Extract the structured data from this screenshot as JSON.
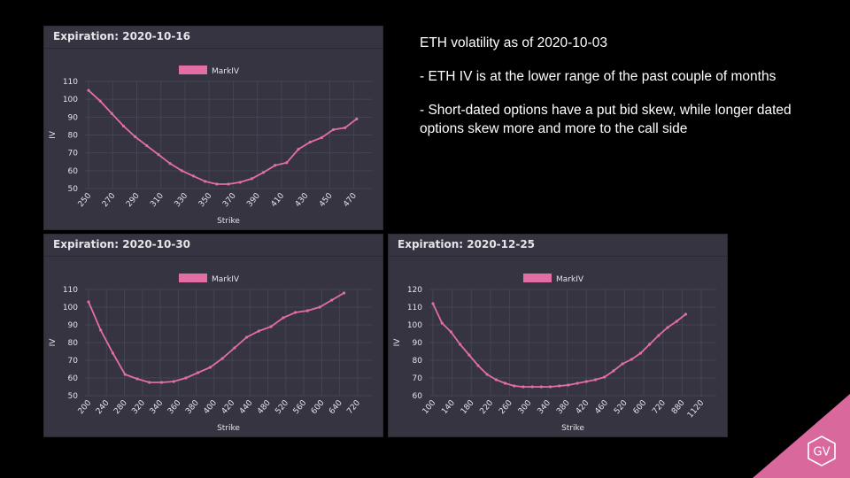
{
  "notes": {
    "heading": "ETH volatility as of 2020-10-03",
    "bullet1": "- ETH IV is at the lower range of the past couple of months",
    "bullet2": "- Short-dated options have a put bid skew, while longer dated options skew more and more to the call side"
  },
  "logo": {
    "text": "GV",
    "color": "#d9689d"
  },
  "colors": {
    "series": "#e26ea5",
    "panel_bg": "#353440",
    "grid": "#454452",
    "text": "#e4e4e8"
  },
  "chart_data": [
    {
      "type": "line",
      "title": "Expiration: 2020-10-16",
      "xlabel": "Strike",
      "ylabel": "IV",
      "legend": "top-center",
      "grid": true,
      "series": [
        {
          "name": "MarkIV",
          "color": "#e26ea5"
        }
      ],
      "x": [
        250,
        260,
        270,
        280,
        290,
        300,
        310,
        320,
        330,
        340,
        350,
        360,
        370,
        380,
        390,
        400,
        410,
        420,
        430,
        440,
        450,
        460,
        470,
        480,
        490
      ],
      "y": [
        105,
        99,
        92,
        85,
        79,
        74,
        69,
        64,
        60,
        57,
        54,
        52.5,
        52.5,
        53.5,
        55.5,
        59,
        63,
        64.5,
        72,
        76,
        78.5,
        83,
        84,
        89,
        null
      ],
      "xticks": [
        "250",
        "270",
        "290",
        "310",
        "330",
        "350",
        "370",
        "390",
        "410",
        "430",
        "450",
        "470"
      ],
      "yticks": [
        50,
        60,
        70,
        80,
        90,
        100,
        110
      ],
      "ylim": [
        50,
        110
      ]
    },
    {
      "type": "line",
      "title": "Expiration: 2020-10-30",
      "xlabel": "Strike",
      "ylabel": "IV",
      "legend": "top-center",
      "grid": true,
      "series": [
        {
          "name": "MarkIV",
          "color": "#e26ea5"
        }
      ],
      "x": [
        200,
        240,
        280,
        320,
        340,
        360,
        380,
        400,
        420,
        440,
        460,
        480,
        500,
        520,
        540,
        560,
        580,
        600,
        620,
        640,
        660,
        680,
        700,
        720
      ],
      "y": [
        103,
        87,
        74,
        62,
        59.5,
        57.5,
        57.5,
        58,
        60,
        63,
        66,
        71,
        77,
        83,
        86.5,
        89,
        94,
        97,
        98,
        100,
        104,
        108,
        null,
        null
      ],
      "xticks": [
        "200",
        "240",
        "280",
        "320",
        "340",
        "360",
        "380",
        "400",
        "420",
        "440",
        "480",
        "520",
        "560",
        "600",
        "640",
        "720"
      ],
      "yticks": [
        50,
        60,
        70,
        80,
        90,
        100,
        110
      ],
      "ylim": [
        50,
        110
      ]
    },
    {
      "type": "line",
      "title": "Expiration: 2020-12-25",
      "xlabel": "Strike",
      "ylabel": "IV",
      "legend": "top-center",
      "grid": true,
      "series": [
        {
          "name": "MarkIV",
          "color": "#e26ea5"
        }
      ],
      "x": [
        100,
        120,
        140,
        160,
        180,
        200,
        220,
        240,
        260,
        280,
        300,
        320,
        340,
        360,
        380,
        400,
        420,
        440,
        460,
        480,
        500,
        520,
        560,
        600,
        640,
        680,
        720,
        800,
        880,
        960,
        1040,
        1120
      ],
      "y": [
        112,
        101,
        96,
        89,
        83,
        77,
        72,
        69,
        67,
        65.5,
        65,
        65,
        65,
        65,
        65.5,
        66,
        67,
        68,
        69,
        70.5,
        74,
        78,
        80.5,
        84,
        89,
        94,
        98.5,
        102,
        106,
        null,
        null,
        null
      ],
      "xticks": [
        "100",
        "140",
        "180",
        "220",
        "260",
        "300",
        "340",
        "380",
        "420",
        "460",
        "520",
        "600",
        "720",
        "880",
        "1120"
      ],
      "yticks": [
        60,
        70,
        80,
        90,
        100,
        110,
        120
      ],
      "ylim": [
        60,
        120
      ]
    }
  ]
}
